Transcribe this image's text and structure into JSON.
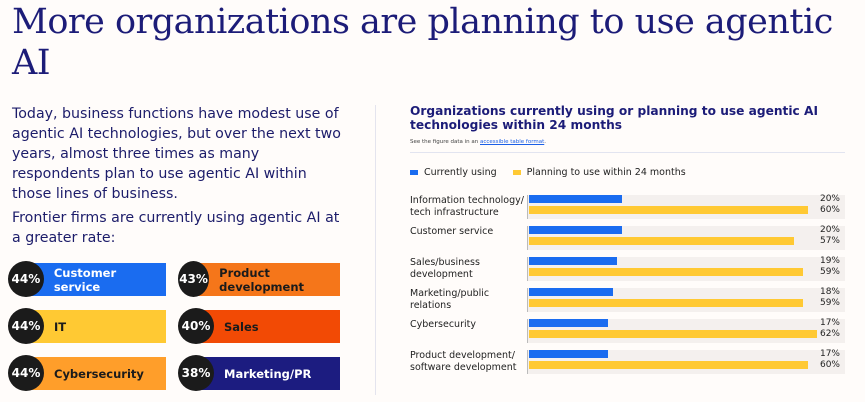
{
  "title": "More organizations are planning to use agentic AI",
  "intro": "Today, business functions have modest use of agentic AI technologies, but over the next two years, almost three times as many respondents plan to use agentic AI within those lines of business.",
  "frontier": "Frontier firms are currently using agentic AI at a greater rate:",
  "badges": [
    {
      "pct": "44%",
      "label": "Customer service",
      "color": "#1a6cf0",
      "text": "#ffffff"
    },
    {
      "pct": "43%",
      "label": "Product development",
      "color": "#f5761a",
      "text": "#1b1b1b"
    },
    {
      "pct": "44%",
      "label": "IT",
      "color": "#ffc933",
      "text": "#1b1b1b"
    },
    {
      "pct": "40%",
      "label": "Sales",
      "color": "#f24a05",
      "text": "#1b1b1b"
    },
    {
      "pct": "44%",
      "label": "Cybersecurity",
      "color": "#ff9e2a",
      "text": "#1b1b1b"
    },
    {
      "pct": "38%",
      "label": "Marketing/PR",
      "color": "#1c1c80",
      "text": "#ffffff"
    }
  ],
  "chart_data": {
    "type": "bar",
    "title": "Organizations currently using or planning to use agentic AI technologies within 24 months",
    "note_prefix": "See the figure data in an ",
    "note_link": "accessible table format",
    "note_suffix": ".",
    "categories": [
      "Information technology/ tech infrastructure",
      "Customer service",
      "Sales/business development",
      "Marketing/public relations",
      "Cybersecurity",
      "Product development/ software development"
    ],
    "series": [
      {
        "name": "Currently using",
        "color": "#1a6cf0",
        "values": [
          20,
          20,
          19,
          18,
          17,
          17
        ]
      },
      {
        "name": "Planning to use within 24 months",
        "color": "#ffc933",
        "values": [
          60,
          57,
          59,
          59,
          62,
          60
        ]
      }
    ],
    "labels": [
      [
        "20%",
        "60%"
      ],
      [
        "20%",
        "57%"
      ],
      [
        "19%",
        "59%"
      ],
      [
        "18%",
        "59%"
      ],
      [
        "17%",
        "62%"
      ],
      [
        "17%",
        "60%"
      ]
    ]
  }
}
